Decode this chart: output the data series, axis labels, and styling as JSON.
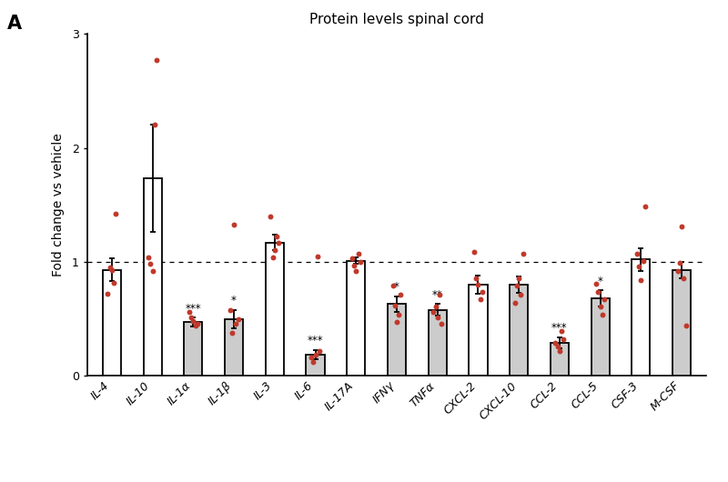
{
  "title": "Protein levels spinal cord",
  "ylabel": "Fold change vs vehicle",
  "panel_label": "A",
  "ylim": [
    0,
    3.0
  ],
  "yticks": [
    0,
    1.0,
    2.0,
    3.0
  ],
  "categories": [
    "IL-4",
    "IL-10",
    "IL-1α",
    "IL-1β",
    "IL-3",
    "IL-6",
    "IL-17A",
    "IFNγ",
    "TNFα",
    "CXCL-2",
    "CXCL-10",
    "CCL-2",
    "CCL-5",
    "CSF-3",
    "M-CSF"
  ],
  "bar_heights": [
    0.93,
    1.73,
    0.47,
    0.5,
    1.17,
    0.19,
    1.01,
    0.63,
    0.58,
    0.8,
    0.8,
    0.29,
    0.68,
    1.02,
    0.93
  ],
  "bar_errors": [
    0.1,
    0.47,
    0.04,
    0.08,
    0.07,
    0.04,
    0.03,
    0.07,
    0.05,
    0.08,
    0.07,
    0.05,
    0.07,
    0.1,
    0.07
  ],
  "bar_colors": [
    "white",
    "white",
    "#cccccc",
    "#cccccc",
    "white",
    "#cccccc",
    "white",
    "#cccccc",
    "#cccccc",
    "white",
    "#cccccc",
    "#cccccc",
    "#cccccc",
    "white",
    "#cccccc"
  ],
  "significance": [
    "",
    "",
    "***",
    "*",
    "",
    "***",
    "",
    "*",
    "**",
    "",
    "",
    "***",
    "*",
    "",
    ""
  ],
  "dot_data": [
    [
      0.72,
      0.82,
      0.93,
      0.95,
      1.42
    ],
    [
      0.92,
      0.98,
      1.04,
      2.77,
      2.2
    ],
    [
      0.44,
      0.46,
      0.48,
      0.51,
      0.56
    ],
    [
      0.38,
      0.46,
      0.5,
      0.58,
      1.33
    ],
    [
      1.04,
      1.1,
      1.17,
      1.22,
      1.4
    ],
    [
      0.12,
      0.16,
      0.19,
      0.22,
      1.05
    ],
    [
      0.92,
      0.97,
      1.0,
      1.03,
      1.07
    ],
    [
      0.47,
      0.54,
      0.62,
      0.71,
      0.79
    ],
    [
      0.46,
      0.51,
      0.56,
      0.61,
      0.71
    ],
    [
      0.67,
      0.74,
      0.8,
      0.86,
      1.09
    ],
    [
      0.64,
      0.71,
      0.79,
      0.86,
      1.07
    ],
    [
      0.22,
      0.26,
      0.29,
      0.32,
      0.39
    ],
    [
      0.54,
      0.61,
      0.67,
      0.74,
      0.81
    ],
    [
      0.84,
      0.96,
      1.01,
      1.07,
      1.49
    ],
    [
      0.44,
      0.86,
      0.92,
      0.99,
      1.31
    ]
  ],
  "dot_color": "#c0392b",
  "dot_size": 18,
  "bar_edge_color": "black",
  "bar_linewidth": 1.3,
  "error_color": "black",
  "dashed_line_y": 1.0,
  "background_color": "white",
  "bar_width": 0.45
}
